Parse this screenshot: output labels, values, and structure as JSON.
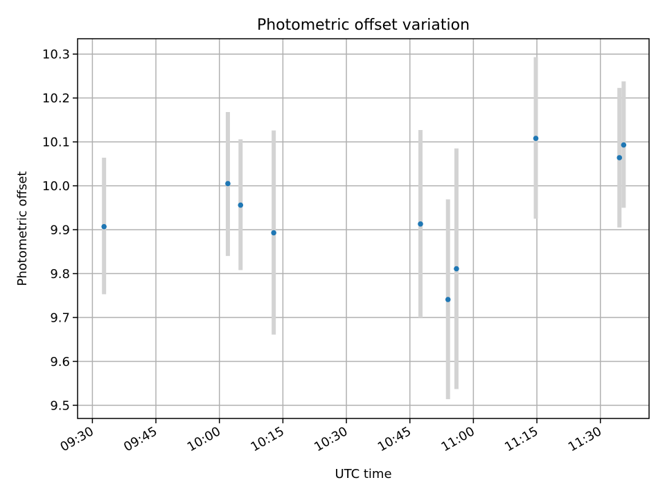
{
  "chart_data": {
    "type": "scatter",
    "title": "Photometric offset variation",
    "xlabel": "UTC time",
    "ylabel": "Photometric offset",
    "x_ticks": [
      "09:30",
      "09:45",
      "10:00",
      "10:15",
      "10:30",
      "10:45",
      "11:00",
      "11:15",
      "11:30"
    ],
    "x_tick_minutes": [
      570,
      585,
      600,
      615,
      630,
      645,
      660,
      675,
      690
    ],
    "xlim_minutes": [
      566.5,
      701.5
    ],
    "y_ticks": [
      "9.5",
      "9.6",
      "9.7",
      "9.8",
      "9.9",
      "10.0",
      "10.1",
      "10.2",
      "10.3"
    ],
    "y_tick_values": [
      9.5,
      9.6,
      9.7,
      9.8,
      9.9,
      10.0,
      10.1,
      10.2,
      10.3
    ],
    "ylim": [
      9.47,
      10.335
    ],
    "grid": true,
    "x_tick_rotation": "30deg",
    "marker_color": "#1f77b4",
    "errorbar_color": "#d3d3d3",
    "points": [
      {
        "x": "09:32:45",
        "y": 9.907,
        "y_err_low": 9.753,
        "y_err_high": 10.064
      },
      {
        "x": "10:02:00",
        "y": 10.005,
        "y_err_low": 9.84,
        "y_err_high": 10.168
      },
      {
        "x": "10:05:00",
        "y": 9.956,
        "y_err_low": 9.808,
        "y_err_high": 10.106
      },
      {
        "x": "10:12:50",
        "y": 9.893,
        "y_err_low": 9.661,
        "y_err_high": 10.126
      },
      {
        "x": "10:47:30",
        "y": 9.913,
        "y_err_low": 9.7,
        "y_err_high": 10.127
      },
      {
        "x": "10:54:00",
        "y": 9.741,
        "y_err_low": 9.514,
        "y_err_high": 9.969
      },
      {
        "x": "10:56:00",
        "y": 9.811,
        "y_err_low": 9.537,
        "y_err_high": 10.085
      },
      {
        "x": "11:14:45",
        "y": 10.108,
        "y_err_low": 9.925,
        "y_err_high": 10.293
      },
      {
        "x": "11:34:30",
        "y": 10.064,
        "y_err_low": 9.905,
        "y_err_high": 10.223
      },
      {
        "x": "11:35:30",
        "y": 10.093,
        "y_err_low": 9.95,
        "y_err_high": 10.238
      }
    ]
  }
}
